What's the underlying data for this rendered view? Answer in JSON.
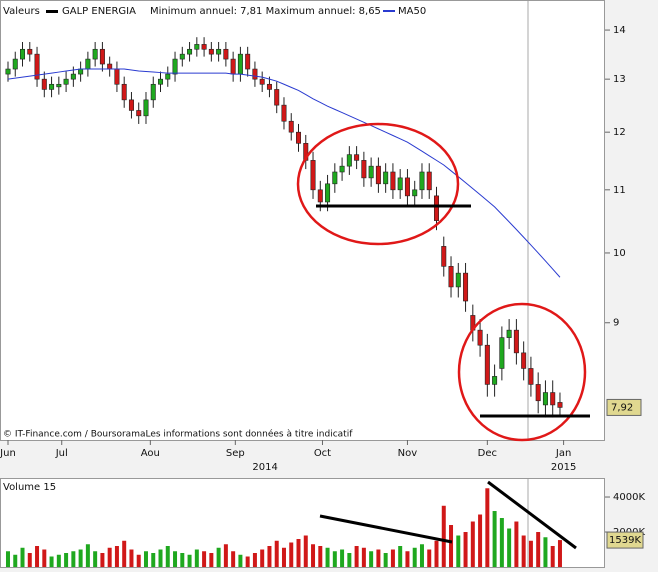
{
  "chart_data": {
    "type": "candlestick",
    "legend_label": "Valeurs",
    "series_name": "GALP ENERGIA",
    "subtitle": "Minimum annuel: 7,81 Maximum annuel: 8,65",
    "source": "© IT-Finance.com / BoursoramaLes informations sont données à titre indicatif",
    "up_color": "#1fa81f",
    "down_color": "#d01818",
    "log_y": true,
    "ylim": [
      7.54,
      14.65
    ],
    "yticks": [
      9,
      10,
      11,
      12,
      13,
      14
    ],
    "xlim": [
      -1.1,
      82.2
    ],
    "xticks": [
      {
        "value": 0,
        "label": "Jun"
      },
      {
        "value": 7.4,
        "label": "Jul"
      },
      {
        "value": 19.6,
        "label": "Aou"
      },
      {
        "value": 31.3,
        "label": "Sep"
      },
      {
        "value": 43.3,
        "label": "Oct"
      },
      {
        "value": 55,
        "label": "Nov"
      },
      {
        "value": 66,
        "label": "Dec"
      },
      {
        "value": 76.5,
        "label": "Jan"
      }
    ],
    "year_ticks": [
      {
        "value": 35.4,
        "label": "2014"
      },
      {
        "value": 76.5,
        "label": "2015"
      }
    ],
    "last_price": {
      "value": 7.92,
      "label": "7,92"
    },
    "open": [
      13.1,
      13.2,
      13.4,
      13.6,
      13.5,
      13.0,
      12.8,
      12.85,
      12.9,
      13.0,
      13.1,
      13.2,
      13.4,
      13.6,
      13.3,
      13.2,
      12.9,
      12.6,
      12.4,
      12.3,
      12.6,
      12.9,
      13.0,
      13.1,
      13.4,
      13.5,
      13.6,
      13.7,
      13.6,
      13.5,
      13.6,
      13.4,
      13.1,
      13.5,
      13.2,
      13.0,
      12.9,
      12.8,
      12.5,
      12.2,
      12.0,
      11.8,
      11.5,
      11.0,
      10.8,
      11.1,
      11.3,
      11.4,
      11.6,
      11.5,
      11.2,
      11.4,
      11.1,
      11.3,
      11.0,
      11.2,
      10.9,
      11.0,
      11.3,
      10.9,
      10.1,
      9.8,
      9.5,
      9.7,
      9.1,
      8.9,
      8.7,
      8.2,
      8.4,
      8.8,
      8.9,
      8.6,
      8.4,
      8.2,
      7.95,
      8.1,
      7.98
    ],
    "high": [
      13.35,
      13.55,
      13.75,
      13.75,
      13.65,
      13.15,
      13.05,
      13.05,
      13.15,
      13.25,
      13.35,
      13.55,
      13.75,
      13.75,
      13.45,
      13.35,
      13.05,
      12.75,
      12.55,
      12.75,
      13.05,
      13.15,
      13.25,
      13.55,
      13.65,
      13.75,
      13.85,
      13.85,
      13.75,
      13.75,
      13.75,
      13.55,
      13.65,
      13.65,
      13.35,
      13.15,
      13.05,
      12.95,
      12.65,
      12.35,
      12.15,
      11.95,
      11.65,
      11.15,
      11.25,
      11.45,
      11.55,
      11.75,
      11.75,
      11.65,
      11.55,
      11.55,
      11.45,
      11.45,
      11.35,
      11.35,
      11.15,
      11.45,
      11.45,
      11.05,
      10.25,
      9.95,
      9.85,
      9.85,
      9.25,
      9.05,
      8.85,
      8.45,
      8.95,
      9.05,
      9.05,
      8.75,
      8.55,
      8.35,
      8.25,
      8.25,
      8.1
    ],
    "low": [
      12.95,
      13.05,
      13.25,
      13.35,
      12.85,
      12.65,
      12.65,
      12.7,
      12.75,
      12.85,
      12.95,
      13.05,
      13.25,
      13.15,
      13.05,
      12.75,
      12.45,
      12.25,
      12.15,
      12.15,
      12.45,
      12.75,
      12.85,
      12.95,
      13.25,
      13.35,
      13.45,
      13.45,
      13.35,
      13.35,
      13.25,
      12.95,
      12.95,
      13.05,
      12.85,
      12.75,
      12.65,
      12.35,
      12.05,
      11.85,
      11.65,
      11.35,
      10.85,
      10.65,
      10.65,
      10.95,
      11.15,
      11.25,
      11.35,
      11.05,
      11.05,
      10.95,
      10.95,
      10.85,
      10.85,
      10.75,
      10.75,
      10.85,
      10.85,
      10.35,
      9.65,
      9.35,
      9.35,
      9.15,
      8.75,
      8.55,
      8.05,
      8.05,
      8.25,
      8.65,
      8.45,
      8.25,
      8.05,
      7.85,
      7.8,
      7.8,
      7.81
    ],
    "close": [
      13.2,
      13.4,
      13.6,
      13.5,
      13.0,
      12.8,
      12.9,
      12.9,
      13.0,
      13.1,
      13.2,
      13.4,
      13.6,
      13.3,
      13.2,
      12.9,
      12.6,
      12.4,
      12.3,
      12.6,
      12.9,
      13.0,
      13.1,
      13.4,
      13.5,
      13.6,
      13.7,
      13.6,
      13.5,
      13.6,
      13.4,
      13.1,
      13.5,
      13.2,
      13.0,
      12.9,
      12.8,
      12.5,
      12.2,
      12.0,
      11.8,
      11.5,
      11.0,
      10.8,
      11.1,
      11.3,
      11.4,
      11.6,
      11.5,
      11.2,
      11.4,
      11.1,
      11.3,
      11.0,
      11.2,
      10.9,
      11.0,
      11.3,
      11.0,
      10.5,
      9.8,
      9.5,
      9.7,
      9.3,
      8.9,
      8.7,
      8.2,
      8.3,
      8.8,
      8.9,
      8.6,
      8.4,
      8.2,
      8.0,
      8.1,
      7.95,
      7.92
    ],
    "ma": {
      "name": "MA50",
      "color": "#2a3bd0",
      "values": [
        13.0,
        13.02,
        13.04,
        13.06,
        13.08,
        13.1,
        13.12,
        13.14,
        13.16,
        13.18,
        13.2,
        13.2,
        13.2,
        13.2,
        13.2,
        13.2,
        13.2,
        13.18,
        13.16,
        13.15,
        13.14,
        13.13,
        13.12,
        13.12,
        13.12,
        13.12,
        13.12,
        13.12,
        13.12,
        13.12,
        13.12,
        13.1,
        13.1,
        13.08,
        13.06,
        13.04,
        13.0,
        12.96,
        12.9,
        12.84,
        12.78,
        12.7,
        12.62,
        12.55,
        12.48,
        12.42,
        12.36,
        12.3,
        12.24,
        12.18,
        12.12,
        12.06,
        12.0,
        11.94,
        11.88,
        11.82,
        11.74,
        11.66,
        11.58,
        11.5,
        11.42,
        11.32,
        11.22,
        11.12,
        11.02,
        10.92,
        10.82,
        10.72,
        10.6,
        10.48,
        10.36,
        10.24,
        10.12,
        10.0,
        9.88,
        9.76,
        9.64
      ]
    },
    "volume": {
      "title": "Volume 15",
      "ylim": [
        0,
        5030
      ],
      "yticks": [
        {
          "value": 2000,
          "label": "2000K"
        },
        {
          "value": 4000,
          "label": "4000K"
        }
      ],
      "last": {
        "value": 1539,
        "label": "1539K"
      },
      "values": [
        900,
        700,
        1100,
        800,
        1200,
        1000,
        600,
        700,
        800,
        900,
        1000,
        1300,
        900,
        800,
        1100,
        1200,
        1500,
        1000,
        700,
        900,
        800,
        1000,
        1200,
        900,
        800,
        700,
        1000,
        900,
        800,
        1100,
        1300,
        900,
        700,
        600,
        800,
        1000,
        1200,
        1500,
        1100,
        1400,
        1600,
        1800,
        1300,
        1200,
        1100,
        900,
        1000,
        800,
        1200,
        1100,
        900,
        1000,
        800,
        1000,
        1200,
        900,
        1100,
        1300,
        1000,
        1500,
        3500,
        2400,
        1800,
        2000,
        2600,
        3000,
        4500,
        3200,
        2800,
        2200,
        2600,
        1800,
        1500,
        2000,
        1700,
        1200,
        1539
      ]
    }
  }
}
